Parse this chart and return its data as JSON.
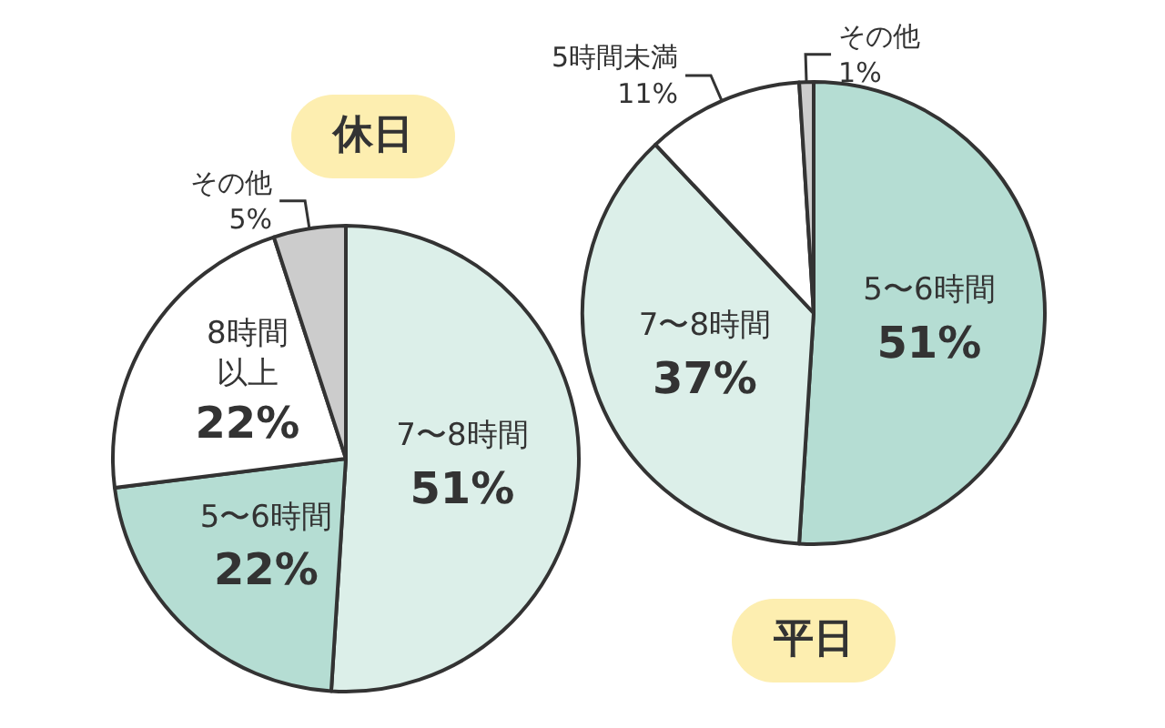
{
  "chart_data": [
    {
      "type": "pie",
      "title": "休日",
      "categories": [
        "7〜8時間",
        "5〜6時間",
        "8時間以上",
        "その他"
      ],
      "values": [
        51,
        22,
        22,
        5
      ],
      "value_labels": [
        "51%",
        "22%",
        "22%",
        "5%"
      ],
      "colors": [
        "#dcefe9",
        "#b5ddd3",
        "#ffffff",
        "#cccccc"
      ]
    },
    {
      "type": "pie",
      "title": "平日",
      "categories": [
        "5〜6時間",
        "7〜8時間",
        "5時間未満",
        "その他"
      ],
      "values": [
        51,
        37,
        11,
        1
      ],
      "value_labels": [
        "51%",
        "37%",
        "11%",
        "1%"
      ],
      "colors": [
        "#b5ddd3",
        "#dcefe9",
        "#ffffff",
        "#cccccc"
      ]
    }
  ]
}
